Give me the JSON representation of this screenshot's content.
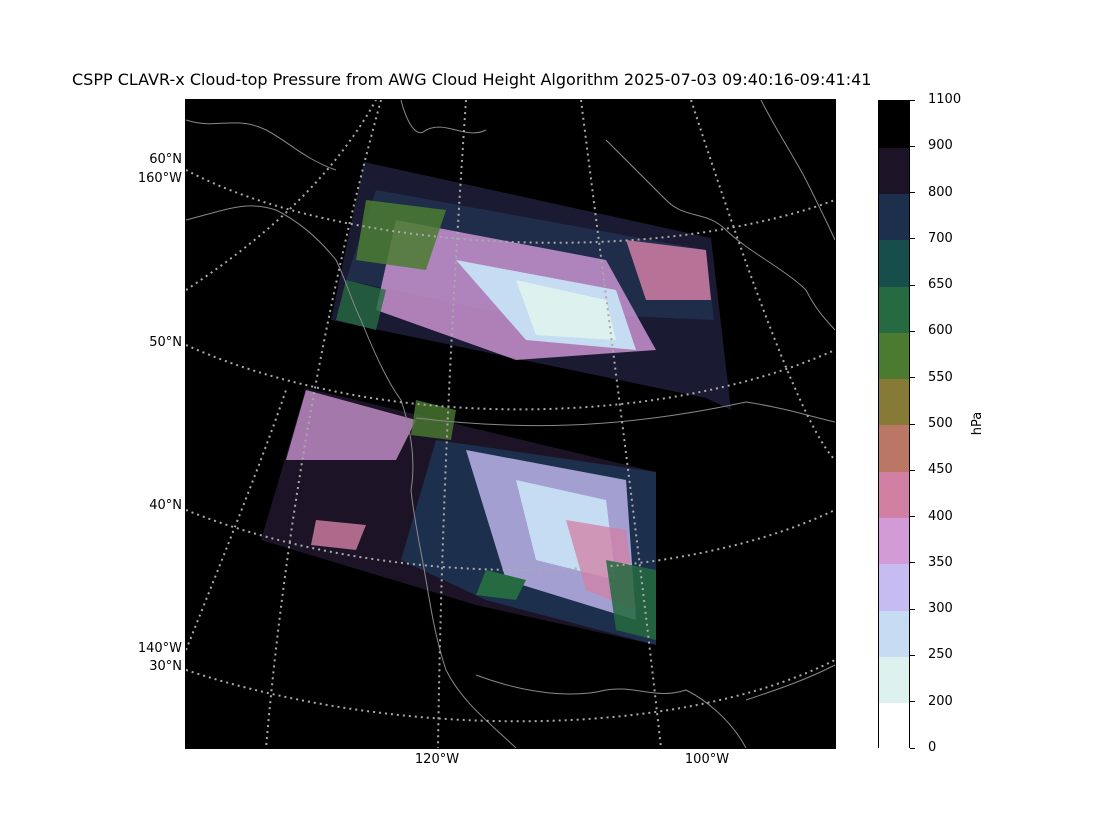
{
  "title": "CSPP CLAVR-x Cloud-top Pressure from AWG Cloud Height Algorithm 2025-07-03 09:40:16-09:41:41",
  "map": {
    "lat_labels": [
      "60°N",
      "50°N",
      "40°N",
      "30°N"
    ],
    "lon_labels_left": [
      "160°W",
      "140°W"
    ],
    "lon_labels_bottom": [
      "120°W",
      "100°W"
    ],
    "background": "#000000",
    "coastline_color": "#888888",
    "gridline_color": "#aaaaaa"
  },
  "colorbar": {
    "unit": "hPa",
    "ticks": [
      "0",
      "200",
      "250",
      "300",
      "350",
      "400",
      "450",
      "500",
      "550",
      "600",
      "650",
      "700",
      "800",
      "900",
      "1100"
    ],
    "colors": [
      "#ffffff",
      "#ddf2ee",
      "#c6dcf2",
      "#c6bcf2",
      "#d39ad8",
      "#d27fa4",
      "#bb7766",
      "#877a37",
      "#4b7b31",
      "#256a40",
      "#174d4b",
      "#1c2f4d",
      "#1c1426",
      "#000000"
    ]
  }
}
